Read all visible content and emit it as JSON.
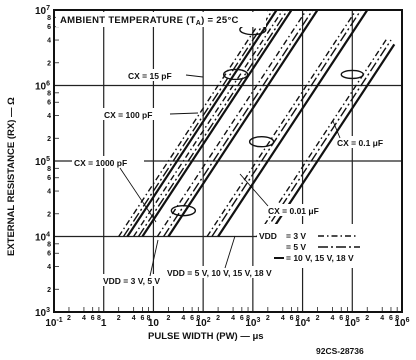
{
  "chart_data": {
    "type": "line",
    "title": "AMBIENT TEMPERATURE (TA) = 25°C",
    "title_prefix": "AMBIENT TEMPERATURE (T",
    "title_sub": "A",
    "title_suffix": ") = 25°C",
    "xlabel": "PULSE WIDTH (PW) — μs",
    "ylabel": "EXTERNAL RESISTANCE (RX) — Ω",
    "figure_code": "92CS-28736",
    "x_scale": "log",
    "y_scale": "log",
    "xlim": [
      0.1,
      1000000
    ],
    "ylim": [
      1000,
      10000000
    ],
    "grid": true,
    "x_ticks": [
      {
        "value": 0.1,
        "base": "10",
        "exp": "-1"
      },
      {
        "value": 1,
        "base": "1",
        "exp": ""
      },
      {
        "value": 10,
        "base": "10",
        "exp": ""
      },
      {
        "value": 100,
        "base": "10",
        "exp": "2"
      },
      {
        "value": 1000,
        "base": "10",
        "exp": "3"
      },
      {
        "value": 10000,
        "base": "10",
        "exp": "4"
      },
      {
        "value": 100000,
        "base": "10",
        "exp": "5"
      },
      {
        "value": 1000000,
        "base": "10",
        "exp": "6"
      }
    ],
    "y_ticks": [
      {
        "value": 1000,
        "base": "10",
        "exp": "3"
      },
      {
        "value": 10000,
        "base": "10",
        "exp": "4"
      },
      {
        "value": 100000,
        "base": "10",
        "exp": "5"
      },
      {
        "value": 1000000,
        "base": "10",
        "exp": "6"
      },
      {
        "value": 10000000,
        "base": "10",
        "exp": "7"
      }
    ],
    "minor_tick_labels": [
      "2",
      "4",
      "6",
      "8"
    ],
    "legend": {
      "placement": "right-center",
      "title": "VDD",
      "entries": [
        {
          "label": "= 3 V",
          "style": "dash-dot"
        },
        {
          "label": "= 5 V",
          "style": "long-dash-dot"
        },
        {
          "label": "= 10 V, 15 V, 18 V",
          "style": "solid"
        }
      ]
    },
    "annotations": {
      "cx_15pf": "CX = 15 pF",
      "cx_100pf": "CX = 100 pF",
      "cx_1000pf": "CX = 1000 pF",
      "cx_001uf": "CX = 0.01 μF",
      "cx_01uf": "CX = 0.1 μF",
      "vdd_3v": "VDD = 3 V, 5 V",
      "vdd_5v": "VDD = 5 V, 10 V, 15 V, 18 V"
    },
    "series": [
      {
        "name": "CX = 15 pF",
        "vdd": "10 V, 15 V, 18 V",
        "style": "solid",
        "x": [
          3,
          3000
        ],
        "y": [
          10000,
          10000000
        ]
      },
      {
        "name": "CX = 15 pF",
        "vdd": "5 V",
        "style": "long-dash-dot",
        "x": [
          2.5,
          2500
        ],
        "y": [
          10000,
          10000000
        ]
      },
      {
        "name": "CX = 15 pF",
        "vdd": "3 V",
        "style": "dash-dot",
        "x": [
          2,
          2000
        ],
        "y": [
          10000,
          10000000
        ]
      },
      {
        "name": "CX = 100 pF",
        "vdd": "10 V, 15 V, 18 V",
        "style": "solid",
        "x": [
          6,
          6000
        ],
        "y": [
          10000,
          10000000
        ]
      },
      {
        "name": "CX = 100 pF",
        "vdd": "5 V",
        "style": "long-dash-dot",
        "x": [
          5,
          5000
        ],
        "y": [
          10000,
          10000000
        ]
      },
      {
        "name": "CX = 100 pF",
        "vdd": "3 V",
        "style": "dash-dot",
        "x": [
          4,
          4000
        ],
        "y": [
          10000,
          10000000
        ]
      },
      {
        "name": "CX = 1000 pF",
        "vdd": "10 V, 15 V, 18 V",
        "style": "solid",
        "x": [
          20,
          20000
        ],
        "y": [
          10000,
          10000000
        ]
      },
      {
        "name": "CX = 1000 pF",
        "vdd": "5 V",
        "style": "long-dash-dot",
        "x": [
          16,
          16000
        ],
        "y": [
          10000,
          10000000
        ]
      },
      {
        "name": "CX = 1000 pF",
        "vdd": "3 V",
        "style": "dash-dot",
        "x": [
          12,
          12000
        ],
        "y": [
          10000,
          10000000
        ]
      },
      {
        "name": "CX = 0.01 μF",
        "vdd": "10 V, 15 V, 18 V",
        "style": "solid",
        "x": [
          200,
          200000
        ],
        "y": [
          10000,
          10000000
        ]
      },
      {
        "name": "CX = 0.01 μF",
        "vdd": "5 V",
        "style": "long-dash-dot",
        "x": [
          150,
          150000
        ],
        "y": [
          10000,
          10000000
        ]
      },
      {
        "name": "CX = 0.01 μF",
        "vdd": "3 V",
        "style": "dash-dot",
        "x": [
          120,
          120000
        ],
        "y": [
          10000,
          10000000
        ]
      },
      {
        "name": "CX = 0.1 μF",
        "vdd": "10 V, 15 V, 18 V",
        "style": "solid",
        "x": [
          2000,
          700000
        ],
        "y": [
          10000,
          3500000
        ]
      },
      {
        "name": "CX = 0.1 μF",
        "vdd": "5 V",
        "style": "long-dash-dot",
        "x": [
          1500,
          600000
        ],
        "y": [
          10000,
          4000000
        ]
      },
      {
        "name": "CX = 0.1 μF",
        "vdd": "3 V",
        "style": "dash-dot",
        "x": [
          1200,
          500000
        ],
        "y": [
          10000,
          4200000
        ]
      }
    ]
  }
}
